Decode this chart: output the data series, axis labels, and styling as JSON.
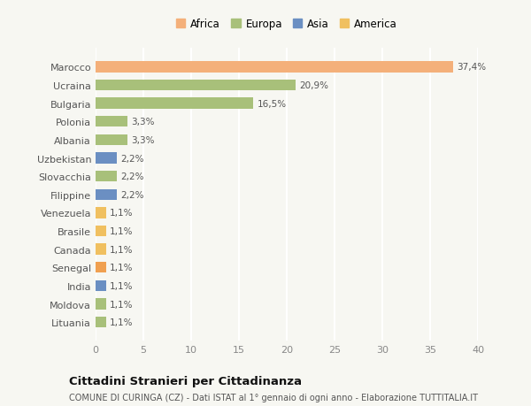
{
  "categories": [
    "Marocco",
    "Ucraina",
    "Bulgaria",
    "Polonia",
    "Albania",
    "Uzbekistan",
    "Slovacchia",
    "Filippine",
    "Venezuela",
    "Brasile",
    "Canada",
    "Senegal",
    "India",
    "Moldova",
    "Lituania"
  ],
  "values": [
    37.4,
    20.9,
    16.5,
    3.3,
    3.3,
    2.2,
    2.2,
    2.2,
    1.1,
    1.1,
    1.1,
    1.1,
    1.1,
    1.1,
    1.1
  ],
  "labels": [
    "37,4%",
    "20,9%",
    "16,5%",
    "3,3%",
    "3,3%",
    "2,2%",
    "2,2%",
    "2,2%",
    "1,1%",
    "1,1%",
    "1,1%",
    "1,1%",
    "1,1%",
    "1,1%",
    "1,1%"
  ],
  "colors": [
    "#f4b07a",
    "#a8c07a",
    "#a8c07a",
    "#a8c07a",
    "#a8c07a",
    "#6b8fc2",
    "#a8c07a",
    "#6b8fc2",
    "#f0c060",
    "#f0c060",
    "#f0c060",
    "#f0a050",
    "#6b8fc2",
    "#a8c07a",
    "#a8c07a"
  ],
  "legend": [
    {
      "label": "Africa",
      "color": "#f4b07a"
    },
    {
      "label": "Europa",
      "color": "#a8c07a"
    },
    {
      "label": "Asia",
      "color": "#6b8fc2"
    },
    {
      "label": "America",
      "color": "#f0c060"
    }
  ],
  "xlim": [
    0,
    40
  ],
  "xticks": [
    0,
    5,
    10,
    15,
    20,
    25,
    30,
    35,
    40
  ],
  "title": "Cittadini Stranieri per Cittadinanza",
  "subtitle": "COMUNE DI CURINGA (CZ) - Dati ISTAT al 1° gennaio di ogni anno - Elaborazione TUTTITALIA.IT",
  "background_color": "#f7f7f2",
  "grid_color": "#ffffff",
  "bar_height": 0.6
}
